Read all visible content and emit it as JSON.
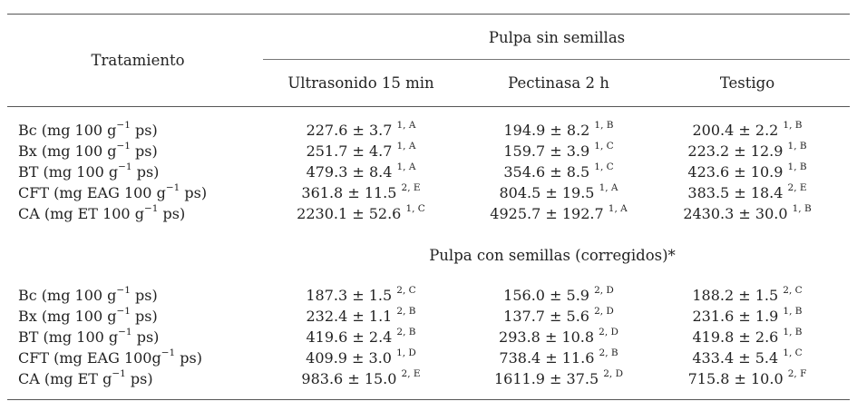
{
  "header": {
    "tratamiento": "Tratamiento",
    "group_title": "Pulpa sin semillas",
    "columns": [
      "Ultrasonido 15 min",
      "Pectinasa 2 h",
      "Testigo"
    ]
  },
  "section1": {
    "rows": [
      {
        "label_pre": "Bc (mg 100 g",
        "label_sup": "−1",
        "label_post": " ps)",
        "cells": [
          {
            "value": "227.6 ± 3.7",
            "sup": "1, A"
          },
          {
            "value": "194.9 ± 8.2",
            "sup": "1, B"
          },
          {
            "value": "200.4 ± 2.2",
            "sup": "1, B"
          }
        ]
      },
      {
        "label_pre": "Bx (mg 100 g",
        "label_sup": "−1",
        "label_post": " ps)",
        "cells": [
          {
            "value": "251.7 ± 4.7",
            "sup": "1, A"
          },
          {
            "value": "159.7 ± 3.9",
            "sup": "1, C"
          },
          {
            "value": "223.2 ± 12.9",
            "sup": "1, B"
          }
        ]
      },
      {
        "label_pre": "BT (mg 100 g",
        "label_sup": "−1",
        "label_post": " ps)",
        "cells": [
          {
            "value": "479.3 ± 8.4",
            "sup": "1, A"
          },
          {
            "value": "354.6 ± 8.5",
            "sup": "1, C"
          },
          {
            "value": "423.6 ± 10.9",
            "sup": "1, B"
          }
        ]
      },
      {
        "label_pre": "CFT (mg EAG 100 g",
        "label_sup": "−1",
        "label_post": " ps)",
        "cells": [
          {
            "value": "361.8 ± 11.5",
            "sup": "2, E"
          },
          {
            "value": "804.5 ± 19.5",
            "sup": "1, A"
          },
          {
            "value": "383.5 ± 18.4",
            "sup": "2, E"
          }
        ]
      },
      {
        "label_pre": "CA (mg ET 100 g",
        "label_sup": "−1",
        "label_post": " ps)",
        "cells": [
          {
            "value": "2230.1 ± 52.6",
            "sup": "1, C"
          },
          {
            "value": "4925.7 ± 192.7",
            "sup": "1, A"
          },
          {
            "value": "2430.3 ± 30.0",
            "sup": "1, B"
          }
        ]
      }
    ]
  },
  "section2": {
    "title": "Pulpa con semillas (corregidos)*",
    "rows": [
      {
        "label_pre": "Bc (mg 100 g",
        "label_sup": "−1",
        "label_post": " ps)",
        "cells": [
          {
            "value": "187.3 ± 1.5",
            "sup": "2, C"
          },
          {
            "value": "156.0 ± 5.9",
            "sup": "2, D"
          },
          {
            "value": "188.2 ± 1.5",
            "sup": "2, C"
          }
        ]
      },
      {
        "label_pre": "Bx (mg 100 g",
        "label_sup": "−1",
        "label_post": " ps)",
        "cells": [
          {
            "value": "232.4 ± 1.1",
            "sup": "2, B"
          },
          {
            "value": "137.7 ± 5.6",
            "sup": "2, D"
          },
          {
            "value": "231.6 ± 1.9",
            "sup": "1, B"
          }
        ]
      },
      {
        "label_pre": "BT (mg 100 g",
        "label_sup": "−1",
        "label_post": " ps)",
        "cells": [
          {
            "value": "419.6 ± 2.4",
            "sup": "2, B"
          },
          {
            "value": "293.8 ± 10.8",
            "sup": "2, D"
          },
          {
            "value": "419.8 ± 2.6",
            "sup": "1, B"
          }
        ]
      },
      {
        "label_pre": "CFT (mg EAG 100g",
        "label_sup": "−1",
        "label_post": " ps)",
        "cells": [
          {
            "value": "409.9 ± 3.0",
            "sup": "1, D"
          },
          {
            "value": "738.4 ± 11.6",
            "sup": "2, B"
          },
          {
            "value": "433.4 ± 5.4",
            "sup": "1, C"
          }
        ]
      },
      {
        "label_pre": "CA (mg ET g",
        "label_sup": "−1",
        "label_post": " ps)",
        "cells": [
          {
            "value": "983.6 ± 15.0",
            "sup": "2, E"
          },
          {
            "value": "1611.9 ± 37.5",
            "sup": "2, D"
          },
          {
            "value": "715.8 ± 10.0",
            "sup": "2, F"
          }
        ]
      }
    ]
  }
}
